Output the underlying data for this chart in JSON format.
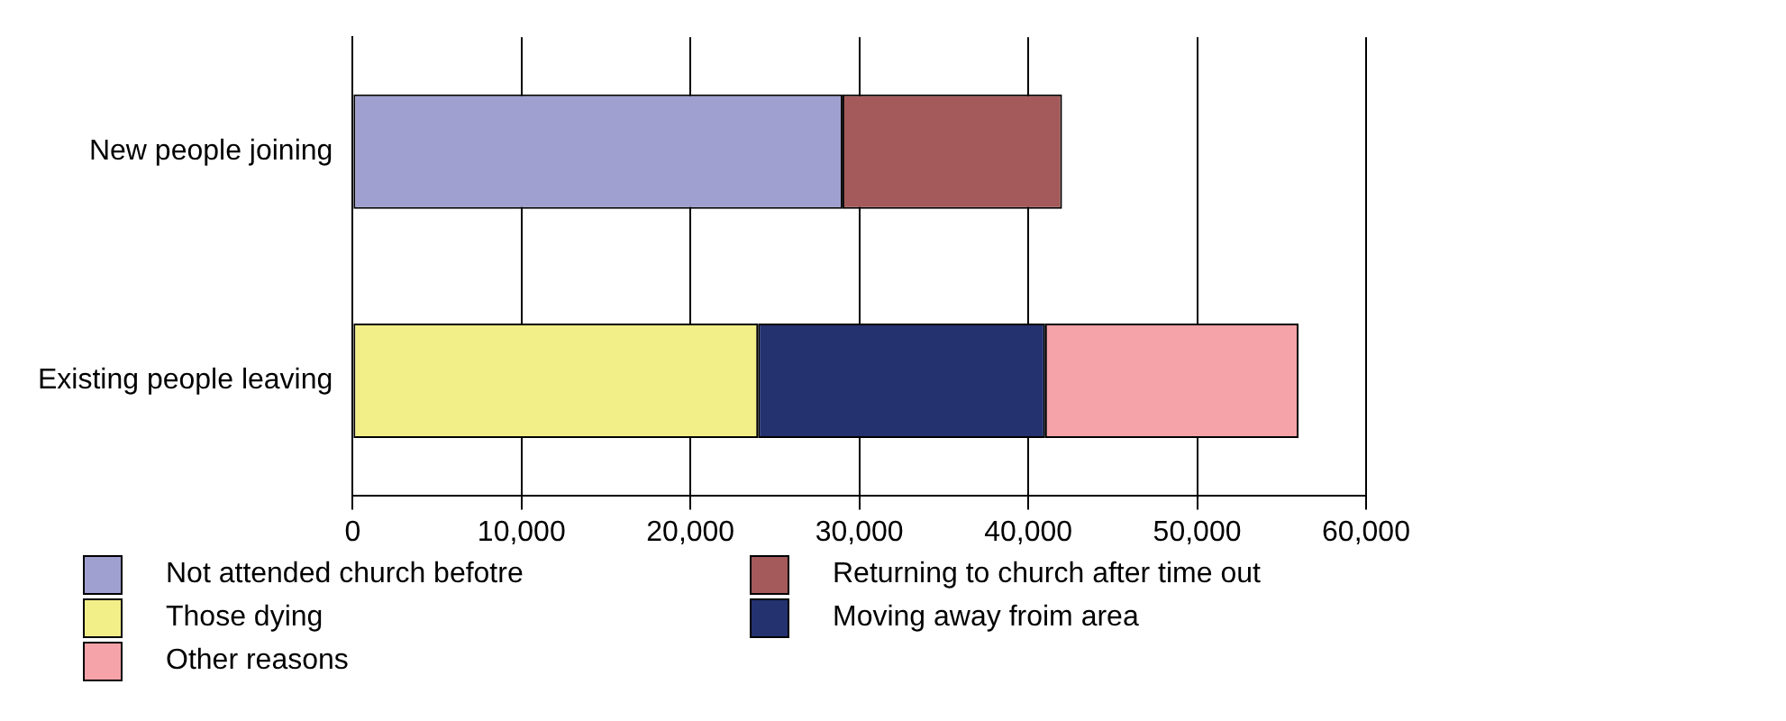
{
  "chart_data": {
    "type": "bar",
    "orientation": "horizontal",
    "stacked": true,
    "categories": [
      "New people joining",
      "Existing people leaving"
    ],
    "series": [
      {
        "name": "Not attended church befotre",
        "color": "#9fa0d0",
        "values": [
          29000,
          null
        ]
      },
      {
        "name": "Returning to church after time out",
        "color": "#a45a5a",
        "values": [
          13000,
          null
        ]
      },
      {
        "name": "Those dying",
        "color": "#f2ef88",
        "values": [
          null,
          24000
        ]
      },
      {
        "name": "Moving away froim area",
        "color": "#243270",
        "values": [
          null,
          17000
        ]
      },
      {
        "name": "Other reasons",
        "color": "#f5a3a8",
        "values": [
          null,
          15000
        ]
      }
    ],
    "xlim": [
      0,
      60000
    ],
    "xticks": [
      {
        "value": 0,
        "label": "0"
      },
      {
        "value": 10000,
        "label": "10,000"
      },
      {
        "value": 20000,
        "label": "20,000"
      },
      {
        "value": 30000,
        "label": "30,000"
      },
      {
        "value": 40000,
        "label": "40,000"
      },
      {
        "value": 50000,
        "label": "50,000"
      },
      {
        "value": 60000,
        "label": "60,000"
      }
    ],
    "grid": "x",
    "legend": "bottom"
  }
}
